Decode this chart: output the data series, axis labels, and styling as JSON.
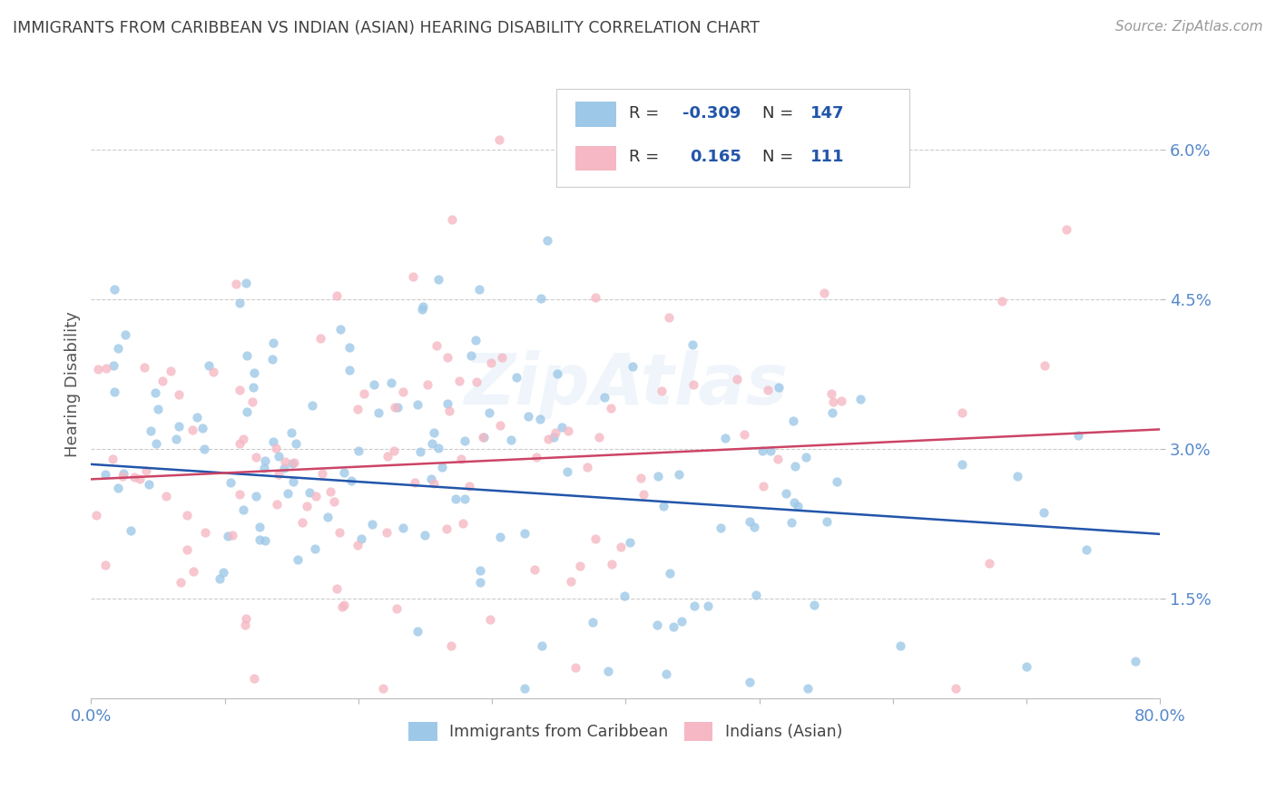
{
  "title": "IMMIGRANTS FROM CARIBBEAN VS INDIAN (ASIAN) HEARING DISABILITY CORRELATION CHART",
  "source": "Source: ZipAtlas.com",
  "ylabel": "Hearing Disability",
  "legend_labels": [
    "Immigrants from Caribbean",
    "Indians (Asian)"
  ],
  "blue_R": -0.309,
  "blue_N": 147,
  "pink_R": 0.165,
  "pink_N": 111,
  "blue_color": "#9ec8e8",
  "pink_color": "#f5b8c4",
  "blue_line_color": "#2255aa",
  "pink_line_color": "#cc4466",
  "x_min": 0.0,
  "x_max": 0.8,
  "y_min": 0.005,
  "y_max": 0.068,
  "y_ticks": [
    0.015,
    0.03,
    0.045,
    0.06
  ],
  "y_tick_labels": [
    "1.5%",
    "3.0%",
    "4.5%",
    "6.0%"
  ],
  "x_tick_labels_ends": [
    "0.0%",
    "80.0%"
  ],
  "background_color": "#ffffff",
  "grid_color": "#cccccc",
  "title_color": "#404040",
  "tick_label_color": "#5588cc",
  "blue_trend_start_y": 0.0285,
  "blue_trend_end_y": 0.0215,
  "pink_trend_start_y": 0.027,
  "pink_trend_end_y": 0.032
}
